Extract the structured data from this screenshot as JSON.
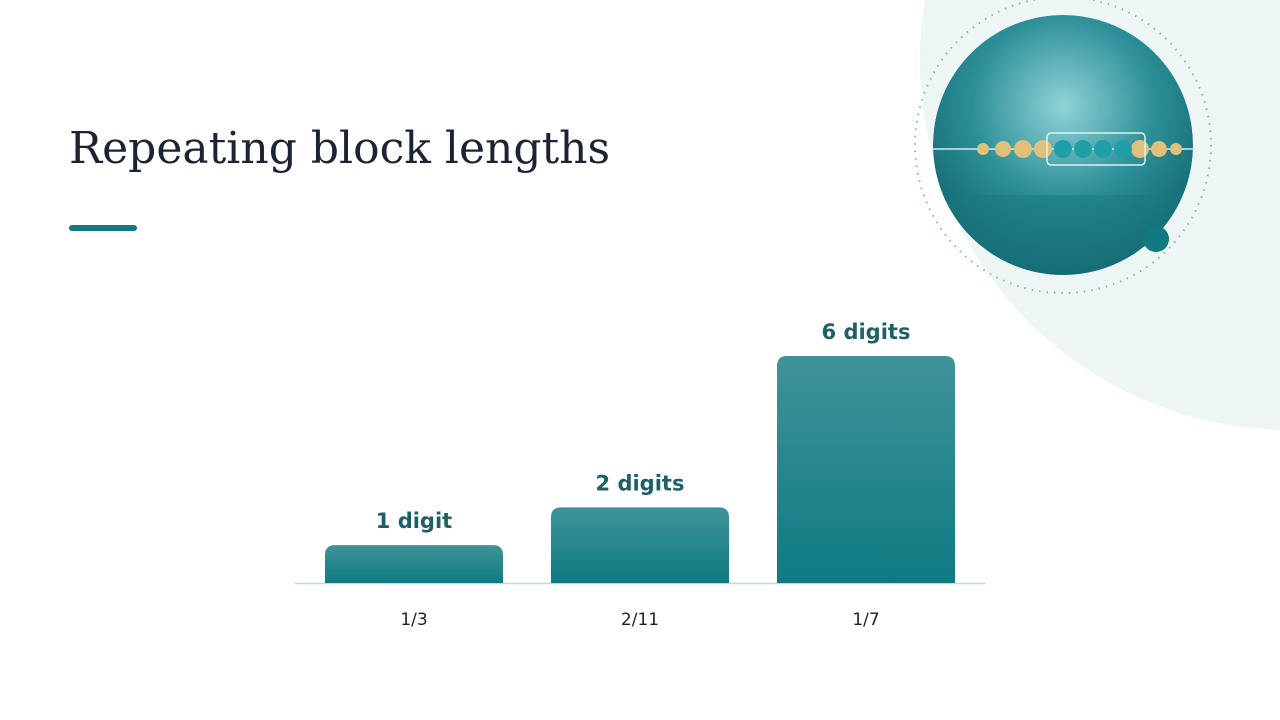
{
  "chart_data": {
    "type": "bar",
    "title": "Repeating block lengths",
    "categories": [
      "1/3",
      "2/11",
      "1/7"
    ],
    "values": [
      1,
      2,
      6
    ],
    "value_labels": [
      "1 digit",
      "2 digits",
      "6 digits"
    ],
    "color": "#12797f"
  }
}
